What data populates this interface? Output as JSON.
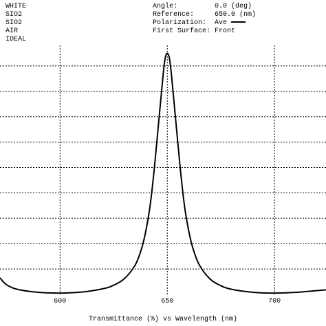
{
  "header": {
    "left_lines": [
      "WHITE",
      "SIO2",
      "SIO2",
      "AIR",
      "IDEAL"
    ],
    "right_labels": [
      "Angle:",
      "Reference:",
      "Polarization:",
      "First Surface:"
    ],
    "right_values": [
      "0.0 (deg)",
      "650.0 (nm)",
      "Ave",
      "Front"
    ]
  },
  "chart_data": {
    "type": "line",
    "title": "",
    "xlabel": "Transmittance (%) vs Wavelength (nm)",
    "ylabel": "",
    "xlim": [
      572,
      724
    ],
    "ylim": [
      0,
      100
    ],
    "xticks": [
      600,
      650,
      700
    ],
    "yticks": [
      10,
      20,
      30,
      40,
      50,
      60,
      70,
      80,
      90
    ],
    "grid": true,
    "series": [
      {
        "name": "",
        "color": "#000000",
        "x": [
          572,
          575,
          580,
          590,
          600,
          610,
          620,
          625,
          630,
          635,
          638,
          640,
          642,
          644,
          646,
          648,
          649,
          650,
          651,
          652,
          654,
          656,
          658,
          660,
          662,
          665,
          670,
          675,
          680,
          690,
          700,
          710,
          720,
          724
        ],
        "y": [
          6.5,
          3.8,
          2.0,
          0.8,
          0.5,
          0.9,
          2.2,
          3.6,
          6.2,
          11.5,
          18.0,
          25.0,
          35.0,
          50.0,
          68.0,
          86.0,
          93.0,
          95.0,
          93.0,
          86.0,
          68.0,
          50.0,
          35.0,
          25.0,
          18.0,
          11.5,
          6.0,
          3.4,
          2.0,
          0.8,
          0.5,
          0.8,
          1.5,
          1.8
        ]
      }
    ]
  }
}
